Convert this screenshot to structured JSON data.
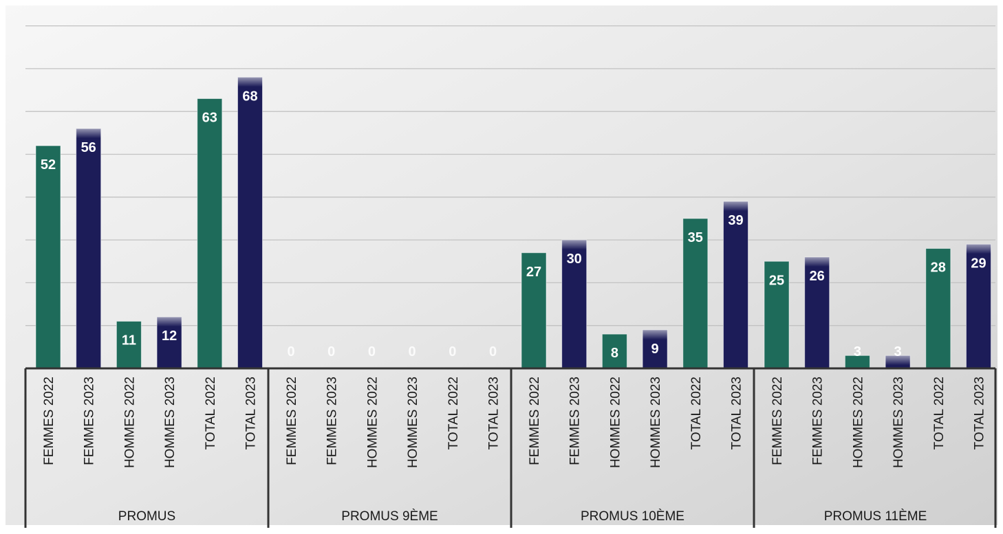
{
  "chart_data": {
    "type": "bar",
    "ylim": [
      0,
      85
    ],
    "grid": true,
    "legend": "none",
    "colors": {
      "2022": "#1e6b5a",
      "2023": "#1c1c58"
    },
    "groups": [
      {
        "label": "PROMUS",
        "categories": [
          "FEMMES 2022",
          "FEMMES 2023",
          "HOMMES 2022",
          "HOMMES 2023",
          "TOTAL 2022",
          "TOTAL 2023"
        ],
        "values": [
          52,
          56,
          11,
          12,
          63,
          68
        ]
      },
      {
        "label": "PROMUS 9ÈME",
        "categories": [
          "FEMMES 2022",
          "FEMMES 2023",
          "HOMMES 2022",
          "HOMMES 2023",
          "TOTAL 2022",
          "TOTAL 2023"
        ],
        "values": [
          0,
          0,
          0,
          0,
          0,
          0
        ]
      },
      {
        "label": "PROMUS 10ÈME",
        "categories": [
          "FEMMES 2022",
          "FEMMES 2023",
          "HOMMES 2022",
          "HOMMES 2023",
          "TOTAL 2022",
          "TOTAL 2023"
        ],
        "values": [
          27,
          30,
          8,
          9,
          35,
          39
        ]
      },
      {
        "label": "PROMUS 11ÈME",
        "categories": [
          "FEMMES 2022",
          "FEMMES 2023",
          "HOMMES 2022",
          "HOMMES 2023",
          "TOTAL 2022",
          "TOTAL 2023"
        ],
        "values": [
          25,
          26,
          3,
          3,
          28,
          29
        ]
      }
    ]
  }
}
